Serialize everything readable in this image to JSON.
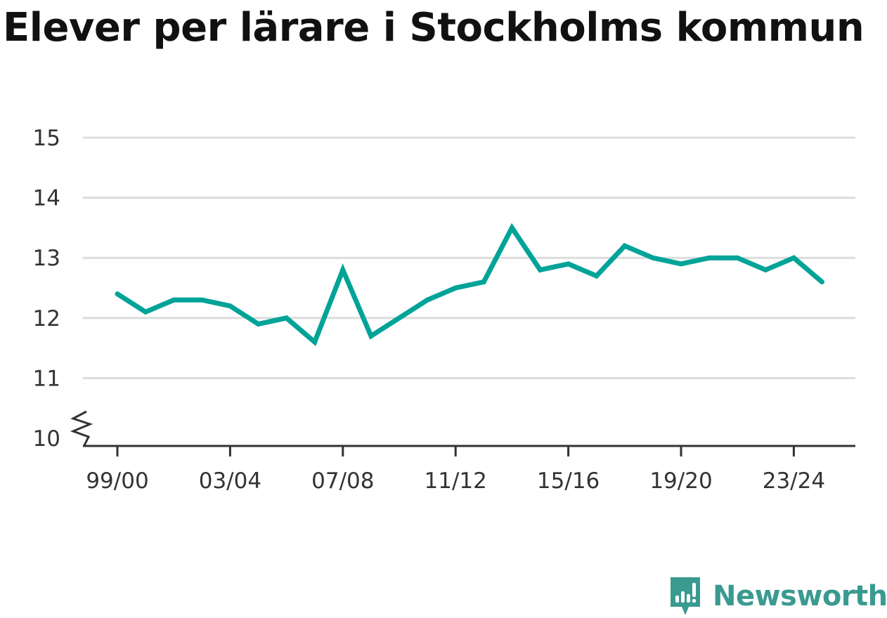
{
  "chart_data": {
    "type": "line",
    "title": "Elever per lärare i Stockholms kommun",
    "xlabel": "",
    "ylabel": "",
    "categories": [
      "99/00",
      "00/01",
      "01/02",
      "02/03",
      "03/04",
      "04/05",
      "05/06",
      "06/07",
      "07/08",
      "08/09",
      "09/10",
      "10/11",
      "11/12",
      "12/13",
      "13/14",
      "14/15",
      "15/16",
      "16/17",
      "17/18",
      "18/19",
      "19/20",
      "20/21",
      "21/22",
      "22/23",
      "23/24",
      "24/25"
    ],
    "x_tick_labels": [
      "99/00",
      "03/04",
      "07/08",
      "11/12",
      "15/16",
      "19/20",
      "23/24"
    ],
    "series": [
      {
        "values": [
          12.4,
          12.1,
          12.3,
          12.3,
          12.2,
          11.9,
          12.0,
          11.6,
          12.8,
          11.7,
          12.0,
          12.3,
          12.5,
          12.6,
          13.5,
          12.8,
          12.9,
          12.7,
          13.2,
          13.0,
          12.9,
          13.0,
          13.0,
          12.8,
          13.0,
          12.6
        ],
        "color": "#00a398"
      }
    ],
    "y_ticks": [
      10,
      11,
      12,
      13,
      14,
      15
    ],
    "ylim": [
      10,
      15
    ],
    "y_axis_break": true,
    "grid": true,
    "legend": "none"
  },
  "branding": {
    "name": "Newsworthy",
    "color": "#3a9a90"
  }
}
